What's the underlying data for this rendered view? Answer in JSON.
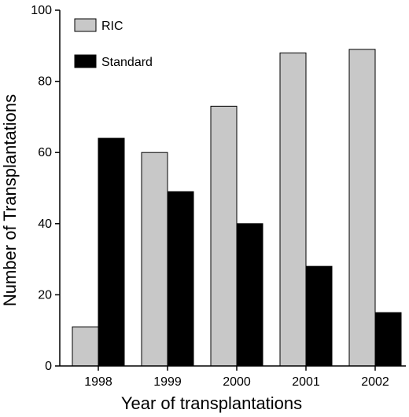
{
  "chart_data": {
    "type": "bar",
    "xlabel": "Year of transplantations",
    "ylabel": "Number of Transplantations",
    "categories": [
      "1998",
      "1999",
      "2000",
      "2001",
      "2002"
    ],
    "series": [
      {
        "name": "RIC",
        "values": [
          11,
          60,
          73,
          88,
          89
        ],
        "color": "#c8c8c8"
      },
      {
        "name": "Standard",
        "values": [
          64,
          49,
          40,
          28,
          15
        ],
        "color": "#000000"
      }
    ],
    "ylim": [
      0,
      100
    ],
    "yticks": [
      "0",
      "20",
      "40",
      "60",
      "80",
      "100"
    ],
    "grid": false,
    "legend_position": "top-left"
  }
}
